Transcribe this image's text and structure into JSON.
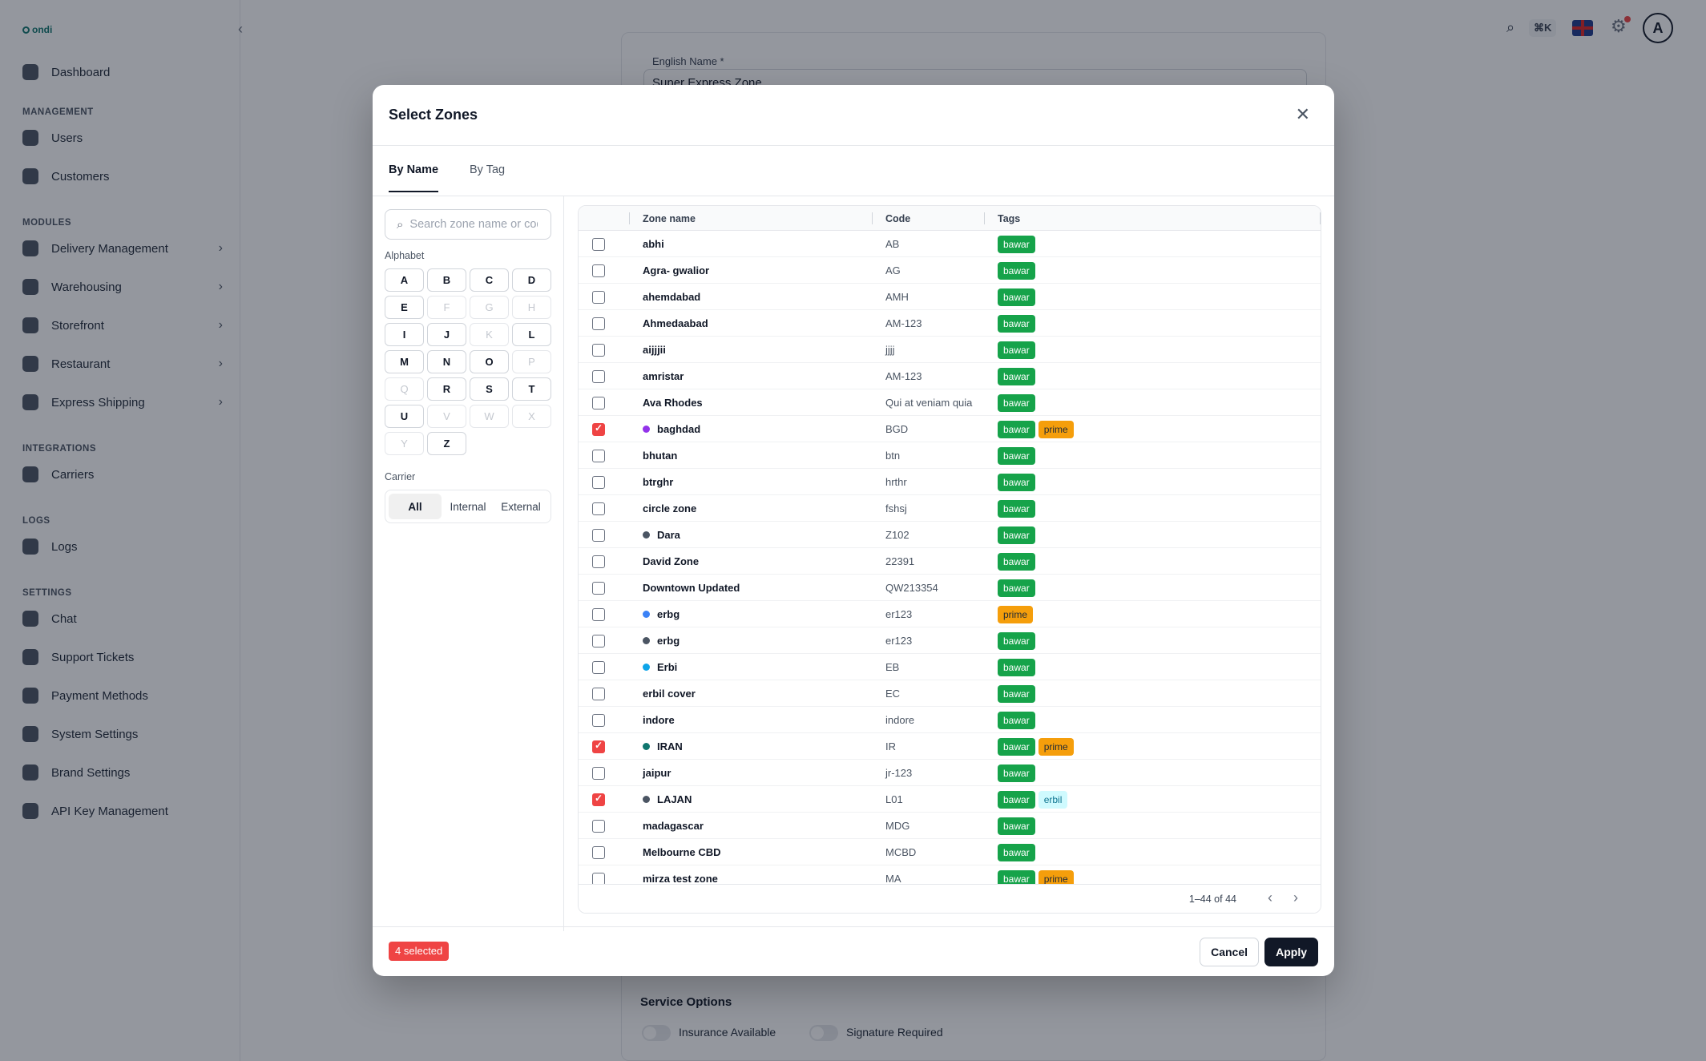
{
  "app": {
    "logo_text": "ondi",
    "collapse_icon": "‹",
    "search_icon": "⌕",
    "shortcut": "⌘K"
  },
  "sidebar": {
    "top_item": {
      "label": "Dashboard",
      "icon": "dashboard-icon"
    },
    "sections": [
      {
        "title": "MANAGEMENT",
        "items": [
          {
            "label": "Users",
            "icon": "users-icon"
          },
          {
            "label": "Customers",
            "icon": "customers-icon"
          }
        ]
      },
      {
        "title": "MODULES",
        "items": [
          {
            "label": "Delivery Management",
            "icon": "delivery-icon",
            "chevron": "›"
          },
          {
            "label": "Warehousing",
            "icon": "warehouse-icon",
            "chevron": "›"
          },
          {
            "label": "Storefront",
            "icon": "storefront-icon",
            "chevron": "›"
          },
          {
            "label": "Restaurant",
            "icon": "restaurant-icon",
            "chevron": "›"
          },
          {
            "label": "Express Shipping",
            "icon": "shipping-icon",
            "chevron": "›"
          }
        ]
      },
      {
        "title": "INTEGRATIONS",
        "items": [
          {
            "label": "Carriers",
            "icon": "carriers-icon"
          }
        ]
      },
      {
        "title": "LOGS",
        "items": [
          {
            "label": "Logs",
            "icon": "logs-icon"
          }
        ]
      },
      {
        "title": "SETTINGS",
        "items": [
          {
            "label": "Chat",
            "icon": "chat-icon"
          },
          {
            "label": "Support Tickets",
            "icon": "tickets-icon"
          },
          {
            "label": "Payment Methods",
            "icon": "payment-icon"
          },
          {
            "label": "System Settings",
            "icon": "system-settings-icon"
          },
          {
            "label": "Brand Settings",
            "icon": "brand-icon"
          },
          {
            "label": "API Key Management",
            "icon": "key-icon"
          }
        ]
      }
    ]
  },
  "topbar": {
    "avatar_letter": "A",
    "gear_icon": "⚙"
  },
  "form": {
    "english_name_label": "English Name *",
    "english_name_value": "Super Express Zone",
    "service_options_title": "Service Options",
    "insurance_label": "Insurance Available",
    "signature_label": "Signature Required"
  },
  "modal": {
    "title": "Select Zones",
    "close_icon": "✕",
    "tabs": [
      "By Name",
      "By Tag"
    ],
    "search_placeholder": "Search zone name or code",
    "search_icon": "⌕",
    "alphabet_label": "Alphabet",
    "letters": [
      {
        "l": "A",
        "on": true
      },
      {
        "l": "B",
        "on": true
      },
      {
        "l": "C",
        "on": true
      },
      {
        "l": "D",
        "on": true
      },
      {
        "l": "E",
        "on": true
      },
      {
        "l": "F",
        "on": false
      },
      {
        "l": "G",
        "on": false
      },
      {
        "l": "H",
        "on": false
      },
      {
        "l": "I",
        "on": true
      },
      {
        "l": "J",
        "on": true
      },
      {
        "l": "K",
        "on": false
      },
      {
        "l": "L",
        "on": true
      },
      {
        "l": "M",
        "on": true
      },
      {
        "l": "N",
        "on": true
      },
      {
        "l": "O",
        "on": true
      },
      {
        "l": "P",
        "on": false
      },
      {
        "l": "Q",
        "on": false
      },
      {
        "l": "R",
        "on": true
      },
      {
        "l": "S",
        "on": true
      },
      {
        "l": "T",
        "on": true
      },
      {
        "l": "U",
        "on": true
      },
      {
        "l": "V",
        "on": false
      },
      {
        "l": "W",
        "on": false
      },
      {
        "l": "X",
        "on": false
      },
      {
        "l": "Y",
        "on": false
      },
      {
        "l": "Z",
        "on": true
      }
    ],
    "carrier_label": "Carrier",
    "carrier_options": [
      "All",
      "Internal",
      "External"
    ],
    "carrier_selected": "All",
    "table": {
      "headers": [
        "Zone name",
        "Code",
        "Tags"
      ],
      "rows": [
        {
          "name": "abhi",
          "code": "AB",
          "tags": [
            "bawar"
          ],
          "checked": false,
          "dot": null
        },
        {
          "name": "Agra- gwalior",
          "code": "AG",
          "tags": [
            "bawar"
          ],
          "checked": false,
          "dot": null
        },
        {
          "name": "ahemdabad",
          "code": "AMH",
          "tags": [
            "bawar"
          ],
          "checked": false,
          "dot": null
        },
        {
          "name": "Ahmedaabad",
          "code": "AM-123",
          "tags": [
            "bawar"
          ],
          "checked": false,
          "dot": null
        },
        {
          "name": "aijjjii",
          "code": "jjjj",
          "tags": [
            "bawar"
          ],
          "checked": false,
          "dot": null
        },
        {
          "name": "amristar",
          "code": "AM-123",
          "tags": [
            "bawar"
          ],
          "checked": false,
          "dot": null
        },
        {
          "name": "Ava Rhodes",
          "code": "Qui at veniam quia",
          "tags": [
            "bawar"
          ],
          "checked": false,
          "dot": null
        },
        {
          "name": "baghdad",
          "code": "BGD",
          "tags": [
            "bawar",
            "prime"
          ],
          "checked": true,
          "dot": "#9333ea"
        },
        {
          "name": "bhutan",
          "code": "btn",
          "tags": [
            "bawar"
          ],
          "checked": false,
          "dot": null
        },
        {
          "name": "btrghr",
          "code": "hrthr",
          "tags": [
            "bawar"
          ],
          "checked": false,
          "dot": null
        },
        {
          "name": "circle zone",
          "code": "fshsj",
          "tags": [
            "bawar"
          ],
          "checked": false,
          "dot": null
        },
        {
          "name": "Dara",
          "code": "Z102",
          "tags": [
            "bawar"
          ],
          "checked": false,
          "dot": "#4b5563"
        },
        {
          "name": "David Zone",
          "code": "22391",
          "tags": [
            "bawar"
          ],
          "checked": false,
          "dot": null
        },
        {
          "name": "Downtown Updated",
          "code": "QW213354",
          "tags": [
            "bawar"
          ],
          "checked": false,
          "dot": null
        },
        {
          "name": "erbg",
          "code": "er123",
          "tags": [
            "prime"
          ],
          "checked": false,
          "dot": "#3b82f6"
        },
        {
          "name": "erbg",
          "code": "er123",
          "tags": [
            "bawar"
          ],
          "checked": false,
          "dot": "#4b5563"
        },
        {
          "name": "Erbi",
          "code": "EB",
          "tags": [
            "bawar"
          ],
          "checked": false,
          "dot": "#0ea5e9"
        },
        {
          "name": "erbil cover",
          "code": "EC",
          "tags": [
            "bawar"
          ],
          "checked": false,
          "dot": null
        },
        {
          "name": "indore",
          "code": "indore",
          "tags": [
            "bawar"
          ],
          "checked": false,
          "dot": null
        },
        {
          "name": "IRAN",
          "code": "IR",
          "tags": [
            "bawar",
            "prime"
          ],
          "checked": true,
          "dot": "#0f766e"
        },
        {
          "name": "jaipur",
          "code": "jr-123",
          "tags": [
            "bawar"
          ],
          "checked": false,
          "dot": null
        },
        {
          "name": "LAJAN",
          "code": "L01",
          "tags": [
            "bawar",
            "erbil"
          ],
          "checked": true,
          "dot": "#4b5563"
        },
        {
          "name": "madagascar",
          "code": "MDG",
          "tags": [
            "bawar"
          ],
          "checked": false,
          "dot": null
        },
        {
          "name": "Melbourne CBD",
          "code": "MCBD",
          "tags": [
            "bawar"
          ],
          "checked": false,
          "dot": null
        },
        {
          "name": "mirza test zone",
          "code": "MA",
          "tags": [
            "bawar",
            "prime"
          ],
          "checked": false,
          "dot": null
        }
      ]
    },
    "pagination": {
      "text": "1–44 of 44",
      "prev_icon": "‹",
      "next_icon": "›"
    },
    "selected_count": "4 selected",
    "cancel_label": "Cancel",
    "apply_label": "Apply"
  }
}
